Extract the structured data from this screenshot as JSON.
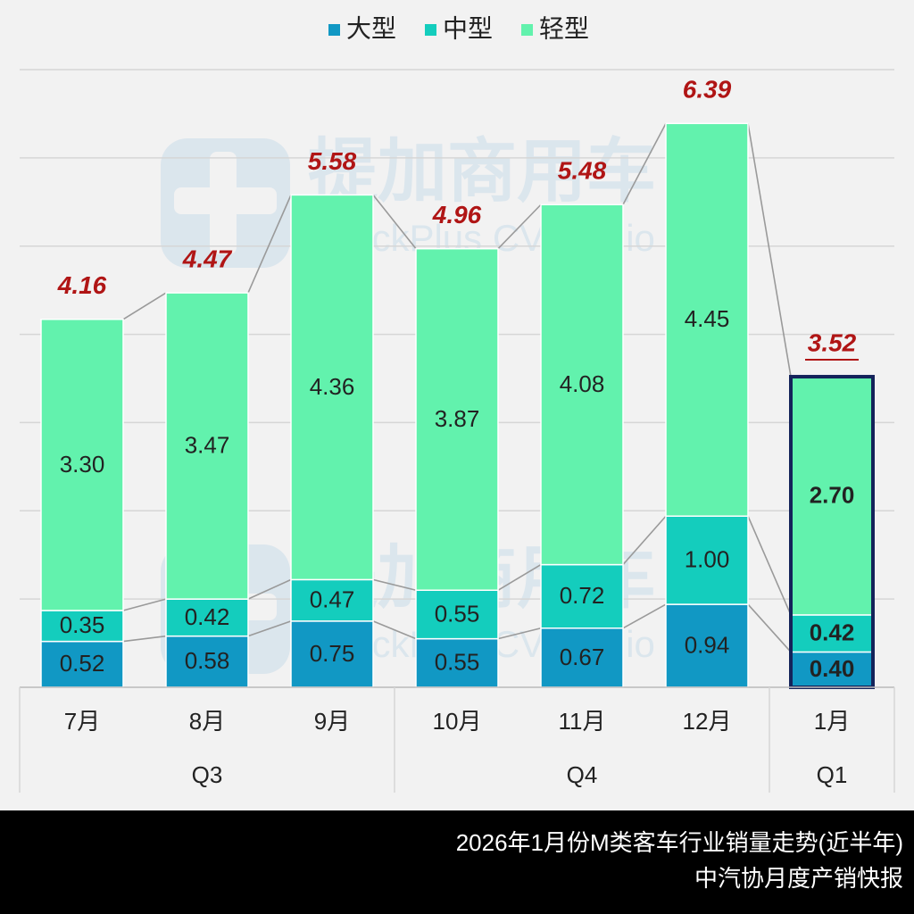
{
  "chart_data": {
    "type": "stacked_bar",
    "categories": [
      "7月",
      "8月",
      "9月",
      "10月",
      "11月",
      "12月",
      "1月"
    ],
    "groups": [
      {
        "label": "Q3",
        "count": 3
      },
      {
        "label": "Q4",
        "count": 3
      },
      {
        "label": "Q1",
        "count": 1
      }
    ],
    "series": [
      {
        "name": "大型",
        "color": "#1198c4",
        "values": [
          0.52,
          0.58,
          0.75,
          0.55,
          0.67,
          0.94,
          0.4
        ],
        "value_labels": [
          "0.52",
          "0.58",
          "0.75",
          "0.55",
          "0.67",
          "0.94",
          "0.40"
        ]
      },
      {
        "name": "中型",
        "color": "#14cdbd",
        "values": [
          0.35,
          0.42,
          0.47,
          0.55,
          0.72,
          1,
          0.42
        ],
        "value_labels": [
          "0.35",
          "0.42",
          "0.47",
          "0.55",
          "0.72",
          "1.00",
          "0.42"
        ]
      },
      {
        "name": "轻型",
        "color": "#62f2ad",
        "values": [
          3.3,
          3.47,
          4.36,
          3.87,
          4.08,
          4.45,
          2.7
        ],
        "value_labels": [
          "3.30",
          "3.47",
          "4.36",
          "3.87",
          "4.08",
          "4.45",
          "2.70"
        ]
      }
    ],
    "totals": [
      4.16,
      4.47,
      5.58,
      4.96,
      5.48,
      6.39,
      3.52
    ],
    "ylim": [
      0,
      7
    ],
    "yticks": [
      0,
      1,
      2,
      3,
      4,
      5,
      6,
      7
    ],
    "grid": true,
    "legend": "top",
    "watermark": {
      "title": "提加商用车",
      "subtitle": "TruckPlus CV studio"
    },
    "footer": [
      "2026年1月份M类客车行业销量走势(近半年)",
      "中汽协月度产销快报"
    ]
  }
}
